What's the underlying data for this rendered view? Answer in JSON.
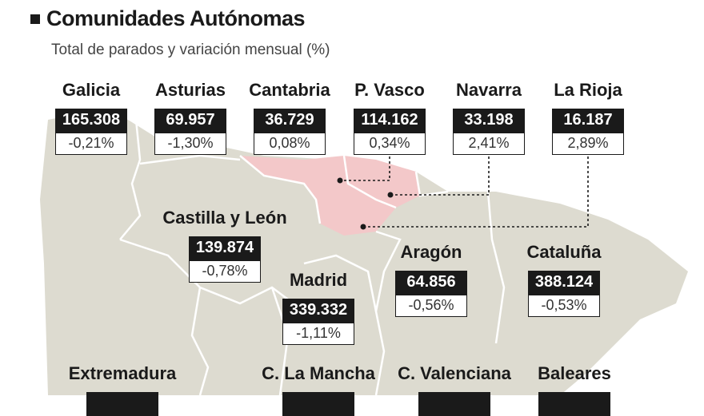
{
  "header": {
    "title": "Comunidades Autónomas",
    "subtitle": "Total de parados y variación mensual (%)"
  },
  "regions": [
    {
      "name": "Galicia",
      "total": "165.308",
      "variation": "-0,21%"
    },
    {
      "name": "Asturias",
      "total": "69.957",
      "variation": "-1,30%"
    },
    {
      "name": "Cantabria",
      "total": "36.729",
      "variation": "0,08%"
    },
    {
      "name": "P. Vasco",
      "total": "114.162",
      "variation": "0,34%"
    },
    {
      "name": "Navarra",
      "total": "33.198",
      "variation": "2,41%"
    },
    {
      "name": "La Rioja",
      "total": "16.187",
      "variation": "2,89%"
    },
    {
      "name": "Castilla y León",
      "total": "139.874",
      "variation": "-0,78%"
    },
    {
      "name": "Aragón",
      "total": "64.856",
      "variation": "-0,56%"
    },
    {
      "name": "Cataluña",
      "total": "388.124",
      "variation": "-0,53%"
    },
    {
      "name": "Madrid",
      "total": "339.332",
      "variation": "-1,11%"
    },
    {
      "name": "Extremadura"
    },
    {
      "name": "C. La Mancha"
    },
    {
      "name": "C. Valenciana"
    },
    {
      "name": "Baleares"
    }
  ],
  "colors": {
    "land": "#dddbd0",
    "highlight": "#f3c8c9",
    "border": "#ffffff",
    "label_dark": "#1a1a1a"
  }
}
